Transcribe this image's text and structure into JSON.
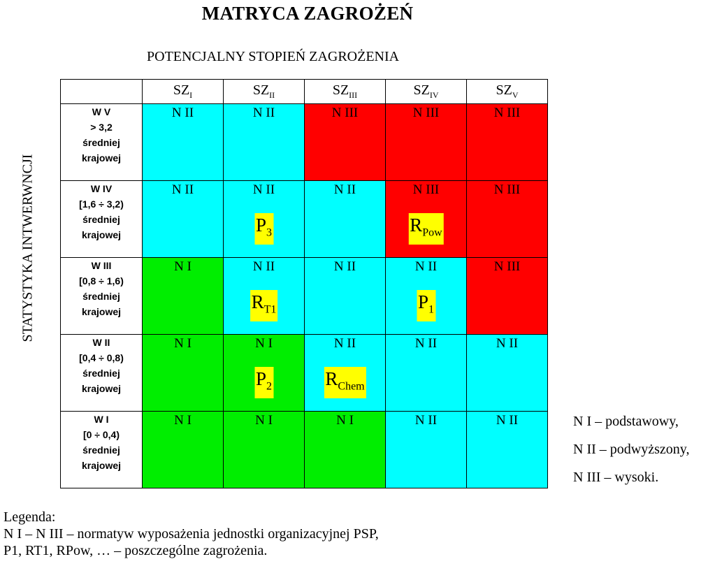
{
  "title": "MATRYCA ZAGROŻEŃ",
  "subtitle": "POTENCJALNY STOPIEŃ ZAGROŻENIA",
  "side_label": "STATYSTYKA INTWERWNCJI",
  "colors": {
    "green": "#00ee00",
    "cyan": "#00ffff",
    "red": "#ff0000",
    "tag": "#ffff00"
  },
  "columns": [
    {
      "base": "SZ",
      "sub": "I"
    },
    {
      "base": "SZ",
      "sub": "II"
    },
    {
      "base": "SZ",
      "sub": "III"
    },
    {
      "base": "SZ",
      "sub": "IV"
    },
    {
      "base": "SZ",
      "sub": "V"
    }
  ],
  "rows": [
    {
      "header": [
        "W V",
        "> 3,2",
        "średniej",
        "krajowej"
      ],
      "cells": [
        {
          "level": "N II",
          "color": "cyan"
        },
        {
          "level": "N II",
          "color": "cyan"
        },
        {
          "level": "N III",
          "color": "red"
        },
        {
          "level": "N III",
          "color": "red"
        },
        {
          "level": "N III",
          "color": "red"
        }
      ]
    },
    {
      "header": [
        "W IV",
        "[1,6 ÷ 3,2)",
        "średniej",
        "krajowej"
      ],
      "cells": [
        {
          "level": "N II",
          "color": "cyan"
        },
        {
          "level": "N II",
          "color": "cyan",
          "tag": {
            "base": "P",
            "sub": "3"
          }
        },
        {
          "level": "N II",
          "color": "cyan"
        },
        {
          "level": "N III",
          "color": "red",
          "tag": {
            "base": "R",
            "sub": "Pow"
          }
        },
        {
          "level": "N III",
          "color": "red"
        }
      ]
    },
    {
      "header": [
        "W III",
        "[0,8 ÷ 1,6)",
        "średniej",
        "krajowej"
      ],
      "cells": [
        {
          "level": "N I",
          "color": "green"
        },
        {
          "level": "N II",
          "color": "cyan",
          "tag": {
            "base": "R",
            "sub": "T1"
          }
        },
        {
          "level": "N II",
          "color": "cyan"
        },
        {
          "level": "N II",
          "color": "cyan",
          "tag": {
            "base": "P",
            "sub": "1"
          }
        },
        {
          "level": "N III",
          "color": "red"
        }
      ]
    },
    {
      "header": [
        "W II",
        "[0,4 ÷ 0,8)",
        "średniej",
        "krajowej"
      ],
      "cells": [
        {
          "level": "N I",
          "color": "green"
        },
        {
          "level": "N I",
          "color": "green",
          "tag": {
            "base": "P",
            "sub": "2"
          }
        },
        {
          "level": "N II",
          "color": "cyan",
          "tag": {
            "base": "R",
            "sub": "Chem"
          }
        },
        {
          "level": "N II",
          "color": "cyan"
        },
        {
          "level": "N II",
          "color": "cyan"
        }
      ]
    },
    {
      "header": [
        "W I",
        "[0 ÷ 0,4)",
        "średniej",
        "krajowej"
      ],
      "cells": [
        {
          "level": "N I",
          "color": "green"
        },
        {
          "level": "N I",
          "color": "green"
        },
        {
          "level": "N I",
          "color": "green"
        },
        {
          "level": "N II",
          "color": "cyan"
        },
        {
          "level": "N II",
          "color": "cyan"
        }
      ]
    }
  ],
  "level_legend": [
    "N I – podstawowy,",
    "N II – podwyższony,",
    "N III – wysoki."
  ],
  "legend": {
    "heading": "Legenda:",
    "lines": [
      "N I – N III – normatyw wyposażenia jednostki organizacyjnej PSP,",
      "P1, RT1, RPow, …  – poszczególne zagrożenia."
    ]
  }
}
